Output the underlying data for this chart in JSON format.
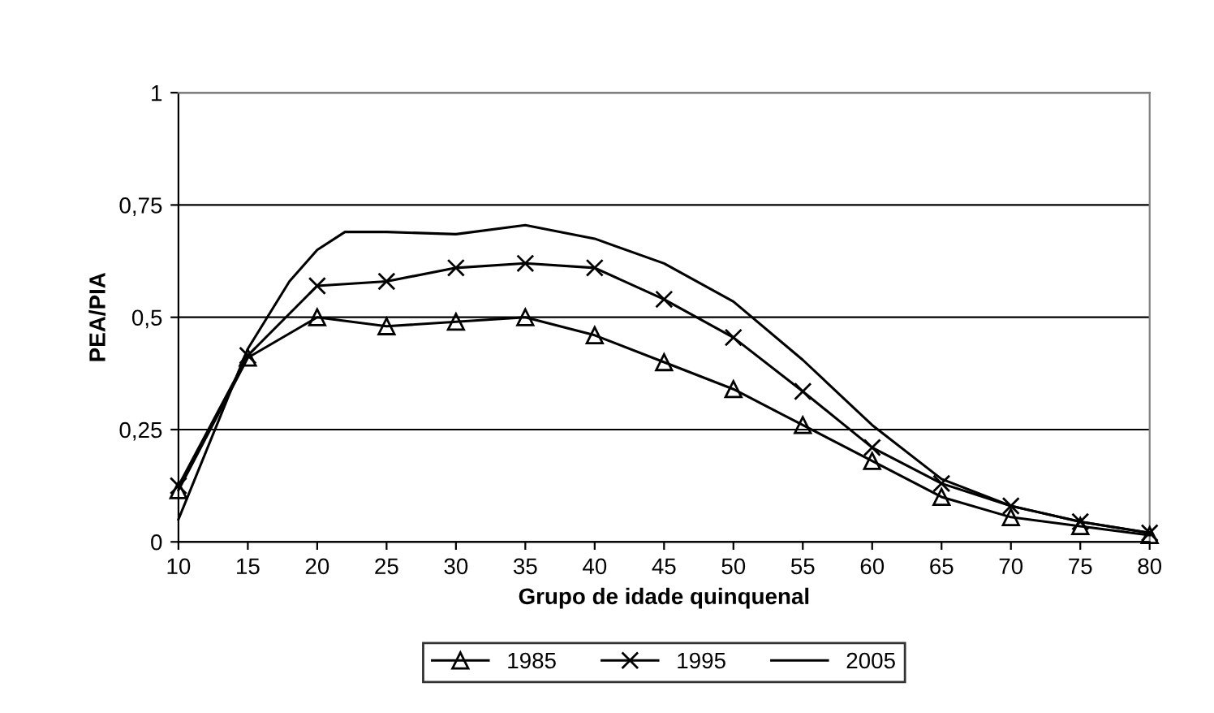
{
  "chart_data": {
    "type": "line",
    "xlabel": "Grupo de idade quinquenal",
    "ylabel": "PEA/PIA",
    "xlim": [
      10,
      80
    ],
    "xticks": [
      10,
      15,
      20,
      25,
      30,
      35,
      40,
      45,
      50,
      55,
      60,
      65,
      70,
      75,
      80
    ],
    "ylim": [
      0,
      1
    ],
    "yticks": [
      0,
      {
        "value": 0.25,
        "label": "0,25"
      },
      {
        "value": 0.5,
        "label": "0,5"
      },
      {
        "value": 0.75,
        "label": "0,75"
      },
      1
    ],
    "grid": "y",
    "legend": "bottom",
    "series": [
      {
        "name": "1985",
        "color": "#000000",
        "marker": "triangle",
        "x": [
          10,
          15,
          20,
          25,
          30,
          35,
          40,
          45,
          50,
          55,
          60,
          65,
          70,
          75,
          80
        ],
        "values": [
          0.115,
          0.41,
          0.5,
          0.48,
          0.49,
          0.5,
          0.46,
          0.4,
          0.34,
          0.26,
          0.18,
          0.1,
          0.055,
          0.035,
          0.015
        ]
      },
      {
        "name": "1995",
        "color": "#000000",
        "marker": "cross",
        "x": [
          10,
          15,
          20,
          25,
          30,
          35,
          40,
          45,
          50,
          55,
          60,
          65,
          70,
          75,
          80
        ],
        "values": [
          0.125,
          0.415,
          0.57,
          0.58,
          0.61,
          0.62,
          0.61,
          0.54,
          0.455,
          0.335,
          0.21,
          0.13,
          0.08,
          0.045,
          0.02
        ]
      },
      {
        "name": "2005",
        "color": "#000000",
        "marker": "none",
        "x": [
          10,
          15,
          18,
          20,
          22,
          25,
          30,
          35,
          40,
          45,
          50,
          55,
          60,
          65,
          70,
          75,
          80
        ],
        "values": [
          0.05,
          0.43,
          0.58,
          0.65,
          0.69,
          0.69,
          0.685,
          0.705,
          0.675,
          0.62,
          0.535,
          0.405,
          0.26,
          0.14,
          0.08,
          0.045,
          0.02
        ]
      }
    ]
  }
}
